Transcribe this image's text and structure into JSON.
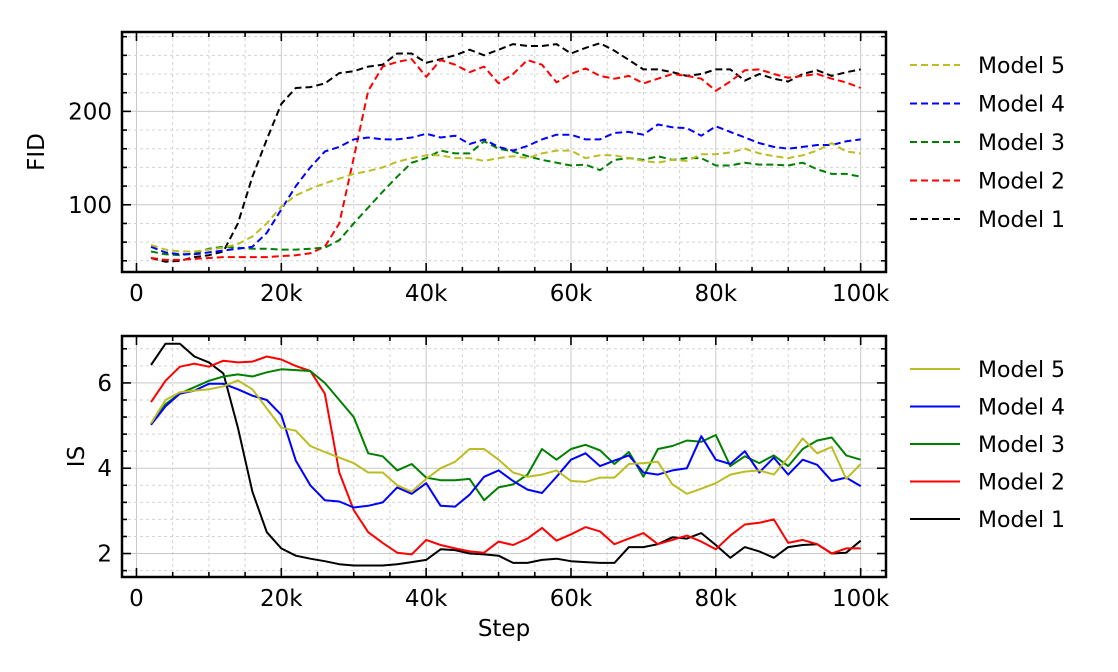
{
  "chart_data": [
    {
      "type": "line",
      "title": "",
      "xlabel": "",
      "ylabel": "FID",
      "xlim": [
        -2000,
        103500
      ],
      "ylim": [
        28,
        285
      ],
      "grid": true,
      "legend_position": "right",
      "xticks": [
        0,
        20000,
        40000,
        60000,
        80000,
        100000
      ],
      "xtick_labels": [
        "0",
        "20k",
        "40k",
        "60k",
        "80k",
        "100k"
      ],
      "yticks": [
        100,
        200
      ],
      "ytick_labels": [
        "100",
        "200"
      ],
      "linestyle": "dashed",
      "x": [
        2000,
        4000,
        6000,
        8000,
        10000,
        12000,
        14000,
        16000,
        18000,
        20000,
        22000,
        24000,
        26000,
        28000,
        30000,
        32000,
        34000,
        36000,
        38000,
        40000,
        42000,
        44000,
        46000,
        48000,
        50000,
        52000,
        54000,
        56000,
        58000,
        60000,
        62000,
        64000,
        66000,
        68000,
        70000,
        72000,
        74000,
        76000,
        78000,
        80000,
        82000,
        84000,
        86000,
        88000,
        90000,
        92000,
        94000,
        96000,
        98000,
        100000
      ],
      "series": [
        {
          "name": "Model 5",
          "color": "#bcbd22",
          "values": [
            57,
            52,
            50,
            50,
            52,
            54,
            58,
            66,
            80,
            98,
            110,
            117,
            123,
            128,
            133,
            136,
            140,
            146,
            150,
            153,
            153,
            150,
            150,
            147,
            150,
            152,
            150,
            155,
            158,
            158,
            150,
            153,
            153,
            150,
            147,
            145,
            148,
            147,
            154,
            154,
            156,
            160,
            155,
            152,
            150,
            153,
            158,
            166,
            157,
            155
          ]
        },
        {
          "name": "Model 4",
          "color": "#0000ff",
          "values": [
            55,
            49,
            47,
            47,
            49,
            51,
            53,
            55,
            70,
            95,
            120,
            140,
            157,
            162,
            170,
            172,
            170,
            170,
            172,
            176,
            172,
            174,
            165,
            170,
            162,
            158,
            163,
            170,
            175,
            175,
            170,
            170,
            177,
            178,
            175,
            186,
            183,
            182,
            174,
            184,
            178,
            172,
            166,
            162,
            160,
            162,
            164,
            164,
            168,
            170
          ]
        },
        {
          "name": "Model 3",
          "color": "#008000",
          "values": [
            50,
            47,
            46,
            48,
            53,
            55,
            54,
            53,
            53,
            52,
            52,
            53,
            54,
            62,
            80,
            97,
            114,
            130,
            145,
            150,
            158,
            155,
            155,
            168,
            160,
            157,
            152,
            148,
            145,
            142,
            143,
            137,
            148,
            150,
            148,
            152,
            148,
            150,
            150,
            142,
            142,
            145,
            143,
            143,
            142,
            145,
            138,
            133,
            133,
            130
          ]
        },
        {
          "name": "Model 2",
          "color": "#ff0000",
          "values": [
            43,
            41,
            41,
            42,
            43,
            44,
            44,
            44,
            44,
            45,
            46,
            48,
            55,
            80,
            150,
            222,
            248,
            253,
            256,
            237,
            255,
            250,
            242,
            248,
            230,
            240,
            255,
            250,
            231,
            240,
            246,
            238,
            235,
            238,
            230,
            235,
            240,
            238,
            235,
            222,
            232,
            244,
            245,
            240,
            236,
            238,
            240,
            235,
            231,
            225
          ]
        },
        {
          "name": "Model 1",
          "color": "#000000",
          "values": [
            43,
            39,
            40,
            44,
            46,
            50,
            80,
            130,
            170,
            208,
            225,
            226,
            230,
            241,
            243,
            248,
            250,
            262,
            262,
            252,
            256,
            260,
            266,
            260,
            266,
            272,
            270,
            270,
            272,
            262,
            268,
            273,
            265,
            255,
            245,
            245,
            242,
            238,
            240,
            245,
            245,
            233,
            240,
            235,
            232,
            240,
            244,
            238,
            242,
            245
          ]
        }
      ]
    },
    {
      "type": "line",
      "title": "",
      "xlabel": "Step",
      "ylabel": "IS",
      "xlim": [
        -2000,
        103500
      ],
      "ylim": [
        1.45,
        7.1
      ],
      "grid": true,
      "legend_position": "right",
      "xticks": [
        0,
        20000,
        40000,
        60000,
        80000,
        100000
      ],
      "xtick_labels": [
        "0",
        "20k",
        "40k",
        "60k",
        "80k",
        "100k"
      ],
      "yticks": [
        2,
        4,
        6
      ],
      "ytick_labels": [
        "2",
        "4",
        "6"
      ],
      "linestyle": "solid",
      "x": [
        2000,
        4000,
        6000,
        8000,
        10000,
        12000,
        14000,
        16000,
        18000,
        20000,
        22000,
        24000,
        26000,
        28000,
        30000,
        32000,
        34000,
        36000,
        38000,
        40000,
        42000,
        44000,
        46000,
        48000,
        50000,
        52000,
        54000,
        56000,
        58000,
        60000,
        62000,
        64000,
        66000,
        68000,
        70000,
        72000,
        74000,
        76000,
        78000,
        80000,
        82000,
        84000,
        86000,
        88000,
        90000,
        92000,
        94000,
        96000,
        98000,
        100000
      ],
      "series": [
        {
          "name": "Model 5",
          "color": "#bcbd22",
          "values": [
            5.05,
            5.6,
            5.78,
            5.82,
            5.85,
            5.92,
            6.06,
            5.85,
            5.4,
            4.95,
            4.88,
            4.52,
            4.38,
            4.25,
            4.12,
            3.9,
            3.9,
            3.6,
            3.45,
            3.75,
            4.0,
            4.15,
            4.45,
            4.45,
            4.2,
            3.9,
            3.8,
            3.85,
            3.95,
            3.7,
            3.68,
            3.78,
            3.78,
            4.1,
            4.12,
            4.15,
            3.62,
            3.4,
            3.52,
            3.65,
            3.85,
            3.92,
            3.95,
            3.85,
            4.25,
            4.7,
            4.35,
            4.5,
            3.75,
            4.1
          ]
        },
        {
          "name": "Model 4",
          "color": "#0000ff",
          "values": [
            5.02,
            5.45,
            5.75,
            5.82,
            5.98,
            5.98,
            5.85,
            5.7,
            5.6,
            5.25,
            4.18,
            3.6,
            3.25,
            3.22,
            3.08,
            3.12,
            3.2,
            3.55,
            3.4,
            3.65,
            3.12,
            3.1,
            3.38,
            3.8,
            3.95,
            3.7,
            3.5,
            3.42,
            3.8,
            4.2,
            4.35,
            4.05,
            4.18,
            4.3,
            3.9,
            3.85,
            3.95,
            4.0,
            4.75,
            4.2,
            4.1,
            4.4,
            3.9,
            4.25,
            3.85,
            4.2,
            4.08,
            3.7,
            3.78,
            3.58
          ]
        },
        {
          "name": "Model 3",
          "color": "#008000",
          "values": [
            5.02,
            5.5,
            5.75,
            5.9,
            6.05,
            6.15,
            6.2,
            6.15,
            6.25,
            6.32,
            6.3,
            6.28,
            6.0,
            5.6,
            5.2,
            4.35,
            4.28,
            3.95,
            4.1,
            3.78,
            3.72,
            3.72,
            3.75,
            3.25,
            3.55,
            3.62,
            3.85,
            4.45,
            4.2,
            4.45,
            4.55,
            4.42,
            4.1,
            4.38,
            3.8,
            4.45,
            4.52,
            4.65,
            4.62,
            4.78,
            4.05,
            4.28,
            4.12,
            4.3,
            4.05,
            4.45,
            4.65,
            4.72,
            4.3,
            4.2
          ]
        },
        {
          "name": "Model 2",
          "color": "#ff0000",
          "values": [
            5.55,
            6.05,
            6.38,
            6.45,
            6.38,
            6.52,
            6.48,
            6.5,
            6.62,
            6.55,
            6.4,
            6.28,
            5.75,
            3.9,
            3.02,
            2.5,
            2.25,
            2.02,
            1.98,
            2.32,
            2.2,
            2.12,
            2.05,
            2.02,
            2.28,
            2.2,
            2.35,
            2.6,
            2.3,
            2.45,
            2.62,
            2.52,
            2.22,
            2.35,
            2.48,
            2.22,
            2.32,
            2.42,
            2.28,
            2.1,
            2.42,
            2.68,
            2.72,
            2.8,
            2.25,
            2.32,
            2.22,
            2.0,
            2.12,
            2.12
          ]
        },
        {
          "name": "Model 1",
          "color": "#000000",
          "values": [
            6.42,
            6.92,
            6.92,
            6.62,
            6.48,
            6.22,
            4.95,
            3.45,
            2.5,
            2.12,
            1.95,
            1.88,
            1.82,
            1.75,
            1.72,
            1.72,
            1.72,
            1.75,
            1.8,
            1.85,
            2.1,
            2.08,
            2.0,
            1.98,
            1.95,
            1.78,
            1.78,
            1.85,
            1.88,
            1.82,
            1.8,
            1.78,
            1.78,
            2.15,
            2.15,
            2.22,
            2.38,
            2.35,
            2.48,
            2.2,
            1.9,
            2.15,
            2.05,
            1.9,
            2.15,
            2.2,
            2.22,
            2.0,
            2.02,
            2.3
          ]
        }
      ]
    }
  ]
}
